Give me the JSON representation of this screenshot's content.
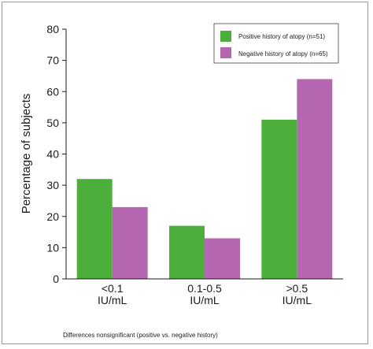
{
  "chart_data": {
    "type": "bar",
    "categories": [
      [
        "<0.1",
        "IU/mL"
      ],
      [
        "0.1-0.5",
        "IU/mL"
      ],
      [
        ">0.5",
        "IU/mL"
      ]
    ],
    "series": [
      {
        "name": "Positive history of atopy (n=51)",
        "color": "#4caf3c",
        "values": [
          32,
          17,
          51
        ]
      },
      {
        "name": "Negative history of atopy (n=65)",
        "color": "#b466b0",
        "values": [
          23,
          13,
          64
        ]
      }
    ],
    "ylabel": "Percentage of subjects",
    "ylim": [
      0,
      80
    ],
    "yticks": [
      0,
      10,
      20,
      30,
      40,
      50,
      60,
      70,
      80
    ],
    "grid": false,
    "legend_position": "top-right"
  },
  "footnote": "Differences nonsignificant (positive vs. negative history)"
}
